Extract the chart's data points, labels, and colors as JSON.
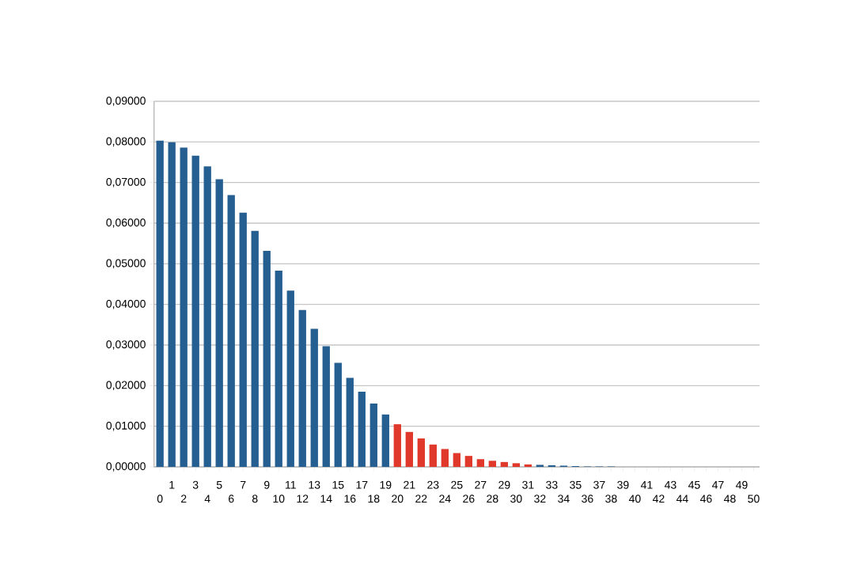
{
  "chart_data": {
    "type": "bar",
    "categories": [
      "0",
      "1",
      "2",
      "3",
      "4",
      "5",
      "6",
      "7",
      "8",
      "9",
      "10",
      "11",
      "12",
      "13",
      "14",
      "15",
      "16",
      "17",
      "18",
      "19",
      "20",
      "21",
      "22",
      "23",
      "24",
      "25",
      "26",
      "27",
      "28",
      "29",
      "30",
      "31",
      "32",
      "33",
      "34",
      "35",
      "36",
      "37",
      "38",
      "39",
      "40",
      "41",
      "42",
      "43",
      "44",
      "45",
      "46",
      "47",
      "48",
      "49",
      "50"
    ],
    "values": [
      0.0803,
      0.0799,
      0.0786,
      0.0766,
      0.074,
      0.0708,
      0.0669,
      0.0626,
      0.0581,
      0.0532,
      0.0483,
      0.0434,
      0.0386,
      0.034,
      0.0297,
      0.0256,
      0.0219,
      0.0185,
      0.0156,
      0.0129,
      0.0105,
      0.0086,
      0.007,
      0.0055,
      0.0044,
      0.0034,
      0.0027,
      0.0019,
      0.0015,
      0.0012,
      0.0009,
      0.0006,
      0.0005,
      0.0004,
      0.0003,
      0.0002,
      0.0001,
      0.0001,
      0.0001,
      0,
      0,
      0,
      0,
      0,
      0,
      0,
      0,
      0,
      0,
      0,
      0
    ],
    "colors": [
      "#255e91",
      "#255e91",
      "#255e91",
      "#255e91",
      "#255e91",
      "#255e91",
      "#255e91",
      "#255e91",
      "#255e91",
      "#255e91",
      "#255e91",
      "#255e91",
      "#255e91",
      "#255e91",
      "#255e91",
      "#255e91",
      "#255e91",
      "#255e91",
      "#255e91",
      "#255e91",
      "#e0392b",
      "#e0392b",
      "#e0392b",
      "#e0392b",
      "#e0392b",
      "#e0392b",
      "#e0392b",
      "#e0392b",
      "#e0392b",
      "#e0392b",
      "#e0392b",
      "#e0392b",
      "#255e91",
      "#255e91",
      "#255e91",
      "#255e91",
      "#255e91",
      "#255e91",
      "#255e91",
      "#255e91",
      "#255e91",
      "#255e91",
      "#255e91",
      "#255e91",
      "#255e91",
      "#255e91",
      "#255e91",
      "#255e91",
      "#255e91",
      "#255e91",
      "#255e91"
    ],
    "ylim": [
      0,
      0.09
    ],
    "yticks": [
      {
        "value": 0,
        "label": "0,00000"
      },
      {
        "value": 0.01,
        "label": "0,01000"
      },
      {
        "value": 0.02,
        "label": "0,02000"
      },
      {
        "value": 0.03,
        "label": "0,03000"
      },
      {
        "value": 0.04,
        "label": "0,04000"
      },
      {
        "value": 0.05,
        "label": "0,05000"
      },
      {
        "value": 0.06,
        "label": "0,06000"
      },
      {
        "value": 0.07,
        "label": "0,07000"
      },
      {
        "value": 0.08,
        "label": "0,08000"
      },
      {
        "value": 0.09,
        "label": "0,09000"
      }
    ],
    "grid": "y"
  }
}
